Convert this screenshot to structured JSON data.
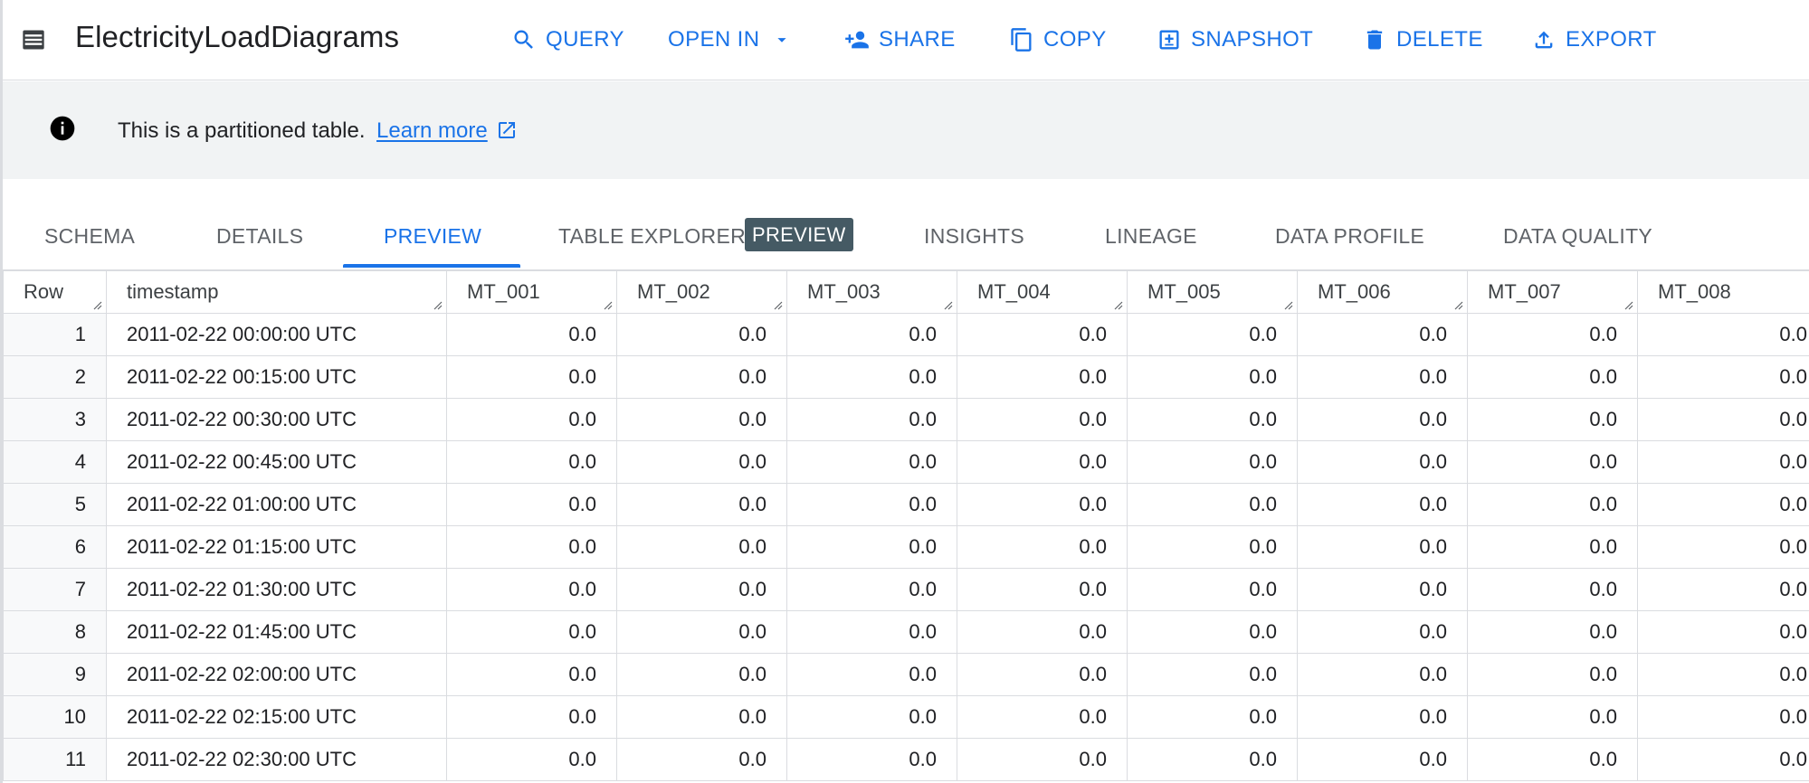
{
  "header": {
    "title": "ElectricityLoadDiagrams",
    "actions": {
      "query": "QUERY",
      "open_in": "OPEN IN",
      "share": "SHARE",
      "copy": "COPY",
      "snapshot": "SNAPSHOT",
      "delete": "DELETE",
      "export": "EXPORT"
    }
  },
  "banner": {
    "text": "This is a partitioned table.",
    "link": "Learn more"
  },
  "tabs": {
    "schema": "SCHEMA",
    "details": "DETAILS",
    "preview": "PREVIEW",
    "table_explorer": "TABLE EXPLORER",
    "table_explorer_badge": "PREVIEW",
    "insights": "INSIGHTS",
    "lineage": "LINEAGE",
    "data_profile": "DATA PROFILE",
    "data_quality": "DATA QUALITY"
  },
  "table": {
    "columns": [
      "Row",
      "timestamp",
      "MT_001",
      "MT_002",
      "MT_003",
      "MT_004",
      "MT_005",
      "MT_006",
      "MT_007",
      "MT_008"
    ],
    "rows": [
      [
        "1",
        "2011-02-22 00:00:00 UTC",
        "0.0",
        "0.0",
        "0.0",
        "0.0",
        "0.0",
        "0.0",
        "0.0",
        "0.0"
      ],
      [
        "2",
        "2011-02-22 00:15:00 UTC",
        "0.0",
        "0.0",
        "0.0",
        "0.0",
        "0.0",
        "0.0",
        "0.0",
        "0.0"
      ],
      [
        "3",
        "2011-02-22 00:30:00 UTC",
        "0.0",
        "0.0",
        "0.0",
        "0.0",
        "0.0",
        "0.0",
        "0.0",
        "0.0"
      ],
      [
        "4",
        "2011-02-22 00:45:00 UTC",
        "0.0",
        "0.0",
        "0.0",
        "0.0",
        "0.0",
        "0.0",
        "0.0",
        "0.0"
      ],
      [
        "5",
        "2011-02-22 01:00:00 UTC",
        "0.0",
        "0.0",
        "0.0",
        "0.0",
        "0.0",
        "0.0",
        "0.0",
        "0.0"
      ],
      [
        "6",
        "2011-02-22 01:15:00 UTC",
        "0.0",
        "0.0",
        "0.0",
        "0.0",
        "0.0",
        "0.0",
        "0.0",
        "0.0"
      ],
      [
        "7",
        "2011-02-22 01:30:00 UTC",
        "0.0",
        "0.0",
        "0.0",
        "0.0",
        "0.0",
        "0.0",
        "0.0",
        "0.0"
      ],
      [
        "8",
        "2011-02-22 01:45:00 UTC",
        "0.0",
        "0.0",
        "0.0",
        "0.0",
        "0.0",
        "0.0",
        "0.0",
        "0.0"
      ],
      [
        "9",
        "2011-02-22 02:00:00 UTC",
        "0.0",
        "0.0",
        "0.0",
        "0.0",
        "0.0",
        "0.0",
        "0.0",
        "0.0"
      ],
      [
        "10",
        "2011-02-22 02:15:00 UTC",
        "0.0",
        "0.0",
        "0.0",
        "0.0",
        "0.0",
        "0.0",
        "0.0",
        "0.0"
      ],
      [
        "11",
        "2011-02-22 02:30:00 UTC",
        "0.0",
        "0.0",
        "0.0",
        "0.0",
        "0.0",
        "0.0",
        "0.0",
        "0.0"
      ]
    ]
  },
  "colors": {
    "accent": "#1a73e8",
    "badge_bg": "#455a64",
    "banner_bg": "#f1f3f4",
    "border": "#dadce0"
  }
}
